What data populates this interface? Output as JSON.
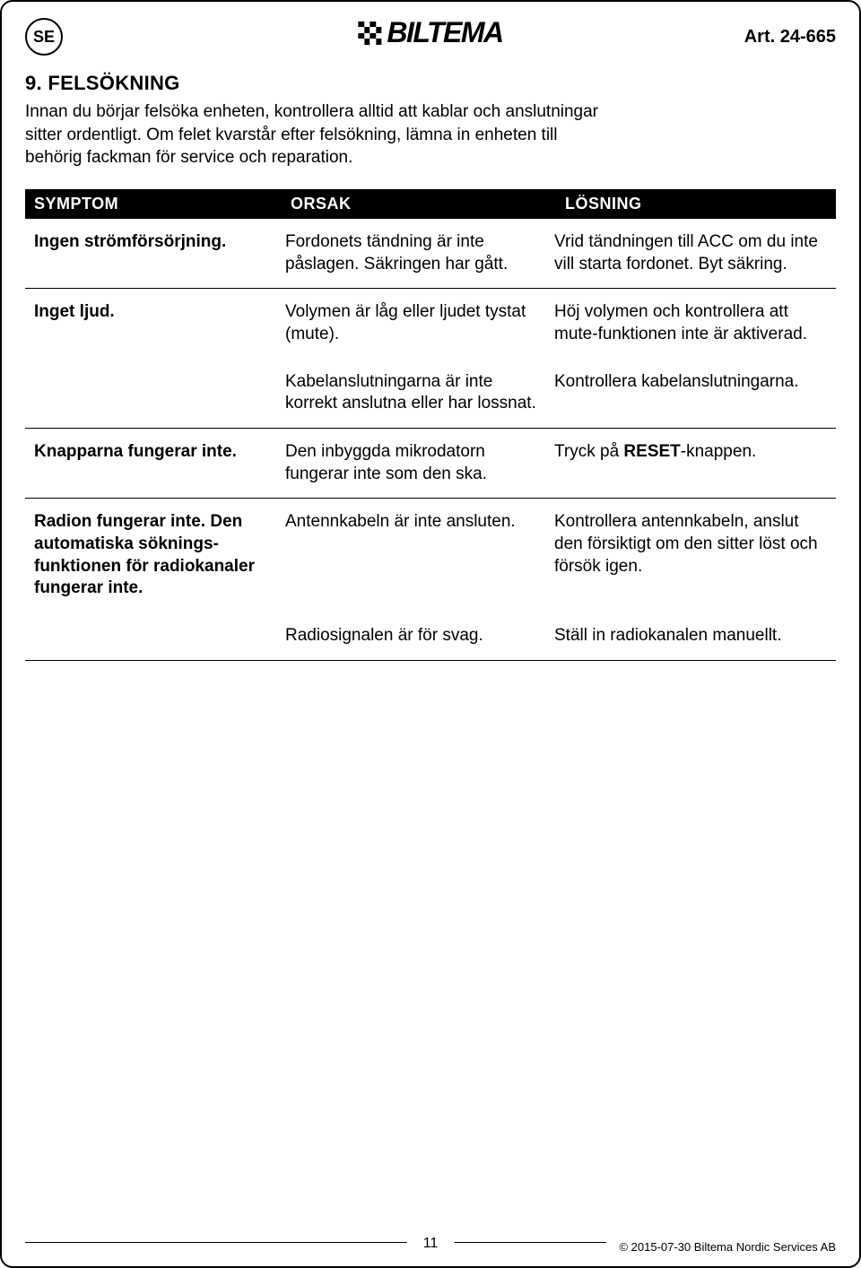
{
  "header": {
    "country_badge": "SE",
    "logo_text": "BILTEMA",
    "article": "Art. 24-665"
  },
  "section": {
    "title": "9. FELSÖKNING",
    "intro": "Innan du börjar felsöka enheten, kontrollera alltid att kablar och anslutningar sitter ordentligt. Om felet kvarstår efter felsökning, lämna in enheten till behörig fackman för service och reparation."
  },
  "table": {
    "columns": [
      "SYMPTOM",
      "ORSAK",
      "LÖSNING"
    ],
    "rows": [
      {
        "symptom": "Ingen strömförsörjning.",
        "cells": [
          {
            "orsak": "Fordonets tändning är inte påslagen. Säkringen har gått.",
            "losning": "Vrid tändningen till ACC om du inte vill starta fordonet. Byt säkring."
          }
        ]
      },
      {
        "symptom": "Inget ljud.",
        "cells": [
          {
            "orsak": "Volymen är låg eller ljudet tystat (mute).",
            "losning": "Höj volymen och kontrollera att mute-funktionen inte är aktiverad."
          },
          {
            "orsak": "Kabelanslutningarna är inte korrekt anslutna eller har lossnat.",
            "losning": "Kontrollera kabelanslutningarna."
          }
        ]
      },
      {
        "symptom": "Knapparna fungerar inte.",
        "cells": [
          {
            "orsak": "Den inbyggda mikrodatorn fungerar inte som den ska.",
            "losning_prefix": "Tryck på ",
            "losning_bold": "RESET",
            "losning_suffix": "-knappen."
          }
        ]
      },
      {
        "symptom": "Radion fungerar inte. Den automatiska söknings­funktionen för radiokanaler fungerar inte.",
        "cells": [
          {
            "orsak": "Antennkabeln är inte ansluten.",
            "losning": "Kontrollera antennkabeln, anslut den försiktigt om den sitter löst och försök igen."
          },
          {
            "orsak": "Radiosignalen är för svag.",
            "losning": "Ställ in radiokanalen manuellt."
          }
        ]
      }
    ]
  },
  "footer": {
    "page": "11",
    "copyright": "© 2015-07-30 Biltema Nordic Services AB"
  },
  "colors": {
    "text": "#000000",
    "header_bg": "#000000",
    "header_fg": "#ffffff",
    "page_bg": "#ffffff",
    "border": "#000000"
  },
  "typography": {
    "body_fontsize": 19,
    "title_fontsize": 22,
    "header_fontsize": 18,
    "logo_fontsize": 32
  }
}
